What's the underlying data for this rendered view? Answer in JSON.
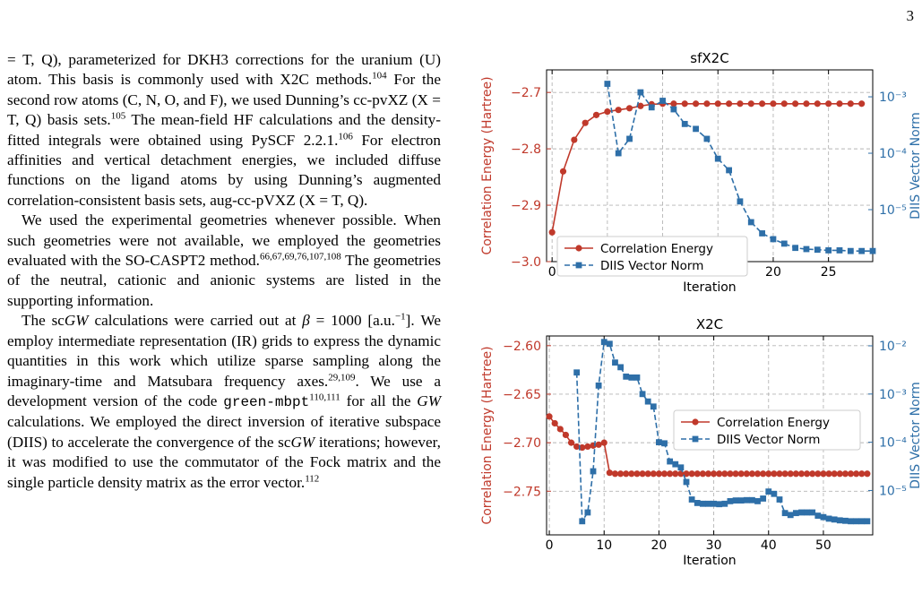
{
  "page_number": "3",
  "body": {
    "p1": [
      {
        "t": "= T, Q), parameterized for DKH3 corrections for the uranium (U) atom. This basis is commonly used with X2C methods."
      },
      {
        "s": "104"
      },
      {
        "t": " For the second row atoms (C, N, O, and F), we used Dunning’s cc-pvXZ (X = T, Q) basis sets."
      },
      {
        "s": "105"
      },
      {
        "t": " The mean-field HF calculations and the density-fitted integrals were obtained using PySCF 2.2.1."
      },
      {
        "s": "106"
      },
      {
        "t": " For electron affinities and vertical detachment energies, we included diffuse functions on the ligand atoms by using Dunning’s augmented correlation-consistent basis sets, aug-cc-pVXZ (X = T, Q)."
      }
    ],
    "p2": [
      {
        "t": "We used the experimental geometries whenever possible. When such geometries were not available, we employed the geometries evaluated with the SO-CASPT2 method."
      },
      {
        "s": "66,67,69,76,107,108"
      },
      {
        "t": " The geometries of the neutral, cationic and anionic systems are listed in the supporting information."
      }
    ],
    "p3": [
      {
        "t": "The sc"
      },
      {
        "i": "GW"
      },
      {
        "t": " calculations were carried out at "
      },
      {
        "i": "β"
      },
      {
        "t": " = 1000 [a.u."
      },
      {
        "s": "−1"
      },
      {
        "t": "]. We employ intermediate representation (IR) grids to express the dynamic quantities in this work which utilize sparse sampling along the imaginary-time and Matsubara frequency axes."
      },
      {
        "s": "29,109"
      },
      {
        "t": ". We use a development version of the code "
      },
      {
        "c": "green-mbpt"
      },
      {
        "s": "110,111"
      },
      {
        "t": " for all the "
      },
      {
        "i": "GW"
      },
      {
        "t": " calculations. We employed the direct inversion of iterative subspace (DIIS) to accelerate the convergence of the sc"
      },
      {
        "i": "GW"
      },
      {
        "t": " iterations; however, it was modified to use the commutator of the Fock matrix and the single particle density matrix as the error vector."
      },
      {
        "s": "112"
      }
    ]
  },
  "chart_data": [
    {
      "type": "line",
      "title": "sfX2C",
      "xlabel": "Iteration",
      "ylabel": "Correlation Energy (Hartree)",
      "ylabel_right": "DIIS Vector Norm",
      "xlim": [
        -0.5,
        29
      ],
      "ylim": [
        -3.0,
        -2.66
      ],
      "ylim_right": [
        1.2e-06,
        0.003
      ],
      "yscale_right": "log",
      "xticks": [
        0,
        5,
        10,
        15,
        20,
        25
      ],
      "yticks": [
        -3.0,
        -2.9,
        -2.8,
        -2.7
      ],
      "ytick_labels": [
        "−3.0",
        "−2.9",
        "−2.8",
        "−2.7"
      ],
      "yticks_right": [
        1e-05,
        0.0001,
        0.001
      ],
      "ytick_labels_right": [
        "10⁻⁵",
        "10⁻⁴",
        "10⁻³"
      ],
      "grid": true,
      "legend_position": "lower-left",
      "series": [
        {
          "name": "Correlation Energy",
          "color": "#c0392b",
          "marker": "circle",
          "linestyle": "solid",
          "axis": "left",
          "x": [
            0,
            1,
            2,
            3,
            4,
            5,
            6,
            7,
            8,
            9,
            10,
            11,
            12,
            13,
            14,
            15,
            16,
            17,
            18,
            19,
            20,
            21,
            22,
            23,
            24,
            25,
            26,
            27,
            28
          ],
          "y": [
            -2.948,
            -2.84,
            -2.784,
            -2.754,
            -2.74,
            -2.734,
            -2.731,
            -2.728,
            -2.724,
            -2.721,
            -2.72,
            -2.72,
            -2.72,
            -2.72,
            -2.72,
            -2.72,
            -2.72,
            -2.72,
            -2.72,
            -2.72,
            -2.72,
            -2.72,
            -2.72,
            -2.72,
            -2.72,
            -2.72,
            -2.72,
            -2.72,
            -2.72
          ]
        },
        {
          "name": "DIIS Vector Norm",
          "color": "#2e6fa8",
          "marker": "square",
          "linestyle": "dashed",
          "axis": "right",
          "x": [
            5,
            6,
            7,
            8,
            9,
            10,
            11,
            12,
            13,
            14,
            15,
            16,
            17,
            18,
            19,
            20,
            21,
            22,
            23,
            24,
            25,
            26,
            27,
            28,
            29
          ],
          "y": [
            0.0017,
            0.0001,
            0.00018,
            0.0012,
            0.00065,
            0.00085,
            0.0006,
            0.00033,
            0.00027,
            0.00018,
            8e-05,
            5e-05,
            1.4e-05,
            6e-06,
            3.8e-06,
            3e-06,
            2.5e-06,
            2.1e-06,
            2e-06,
            1.95e-06,
            1.9e-06,
            1.9e-06,
            1.85e-06,
            1.85e-06,
            1.85e-06
          ]
        }
      ]
    },
    {
      "type": "line",
      "title": "X2C",
      "xlabel": "Iteration",
      "ylabel": "Correlation Energy (Hartree)",
      "ylabel_right": "DIIS Vector Norm",
      "xlim": [
        -0.5,
        59
      ],
      "ylim": [
        -2.795,
        -2.59
      ],
      "ylim_right": [
        1.2e-06,
        0.016
      ],
      "yscale_right": "log",
      "xticks": [
        0,
        10,
        20,
        30,
        40,
        50
      ],
      "yticks": [
        -2.75,
        -2.7,
        -2.65,
        -2.6
      ],
      "ytick_labels": [
        "−2.75",
        "−2.70",
        "−2.65",
        "−2.60"
      ],
      "yticks_right": [
        1e-05,
        0.0001,
        0.001,
        0.01
      ],
      "ytick_labels_right": [
        "10⁻⁵",
        "10⁻⁴",
        "10⁻³",
        "10⁻²"
      ],
      "grid": true,
      "legend_position": "center-right",
      "series": [
        {
          "name": "Correlation Energy",
          "color": "#c0392b",
          "marker": "circle",
          "linestyle": "solid",
          "axis": "left",
          "x": [
            0,
            1,
            2,
            3,
            4,
            5,
            6,
            7,
            8,
            9,
            10,
            11,
            12,
            13,
            14,
            15,
            16,
            17,
            18,
            19,
            20,
            21,
            22,
            23,
            24,
            25,
            26,
            27,
            28,
            29,
            30,
            31,
            32,
            33,
            34,
            35,
            36,
            37,
            38,
            39,
            40,
            41,
            42,
            43,
            44,
            45,
            46,
            47,
            48,
            49,
            50,
            51,
            52,
            53,
            54,
            55,
            56,
            57,
            58
          ],
          "y": [
            -2.673,
            -2.68,
            -2.686,
            -2.692,
            -2.7,
            -2.704,
            -2.705,
            -2.704,
            -2.703,
            -2.702,
            -2.7,
            -2.731,
            -2.732,
            -2.732,
            -2.732,
            -2.732,
            -2.732,
            -2.732,
            -2.732,
            -2.732,
            -2.732,
            -2.732,
            -2.732,
            -2.732,
            -2.732,
            -2.732,
            -2.732,
            -2.732,
            -2.732,
            -2.732,
            -2.732,
            -2.732,
            -2.732,
            -2.732,
            -2.732,
            -2.732,
            -2.732,
            -2.732,
            -2.732,
            -2.732,
            -2.732,
            -2.732,
            -2.732,
            -2.732,
            -2.732,
            -2.732,
            -2.732,
            -2.732,
            -2.732,
            -2.732,
            -2.732,
            -2.732,
            -2.732,
            -2.732,
            -2.732,
            -2.732,
            -2.732,
            -2.732,
            -2.732
          ]
        },
        {
          "name": "DIIS Vector Norm",
          "color": "#2e6fa8",
          "marker": "square",
          "linestyle": "dashed",
          "axis": "right",
          "x": [
            5,
            6,
            7,
            8,
            9,
            10,
            11,
            12,
            13,
            14,
            15,
            16,
            17,
            18,
            19,
            20,
            21,
            22,
            23,
            24,
            25,
            26,
            27,
            28,
            29,
            30,
            31,
            32,
            33,
            34,
            35,
            36,
            37,
            38,
            39,
            40,
            41,
            42,
            43,
            44,
            45,
            46,
            47,
            48,
            49,
            50,
            51,
            52,
            53,
            54,
            55,
            56,
            57,
            58
          ],
          "y": [
            0.0028,
            2.3e-06,
            3.5e-06,
            2.5e-05,
            0.0015,
            0.012,
            0.011,
            0.0045,
            0.0036,
            0.0023,
            0.0022,
            0.0022,
            0.001,
            0.0007,
            0.00055,
            0.0001,
            9.5e-05,
            4e-05,
            3.5e-05,
            3e-05,
            1.5e-05,
            6.5e-06,
            5.5e-06,
            5.3e-06,
            5.3e-06,
            5.3e-06,
            5.2e-06,
            5.3e-06,
            6e-06,
            6.2e-06,
            6.2e-06,
            6.3e-06,
            6.3e-06,
            6e-06,
            6.8e-06,
            9.5e-06,
            8.5e-06,
            6.5e-06,
            3.4e-06,
            3.1e-06,
            3.4e-06,
            3.5e-06,
            3.5e-06,
            3.5e-06,
            3e-06,
            2.8e-06,
            2.6e-06,
            2.5e-06,
            2.4e-06,
            2.35e-06,
            2.3e-06,
            2.3e-06,
            2.3e-06,
            2.3e-06
          ]
        }
      ]
    }
  ]
}
